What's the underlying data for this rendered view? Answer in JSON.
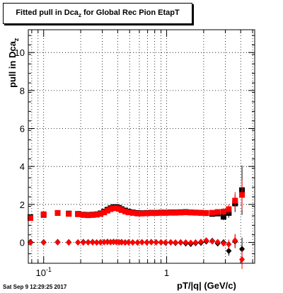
{
  "chart_data": {
    "type": "scatter",
    "title_main": "Fitted pull in Dca",
    "title_sub": "z",
    "title_rest": " for Global Rec Pion EtapT",
    "xlabel": "pT/|q| (GeV/c)",
    "ylabel_main": "pull in Dca",
    "ylabel_sub": "z",
    "x_scale": "log",
    "xlim": [
      0.075,
      5.2
    ],
    "ylim": [
      -1.1,
      11.2
    ],
    "y_ticks": [
      0,
      2,
      4,
      6,
      8,
      10
    ],
    "x_tick_labels": [
      {
        "value": 0.1,
        "base": "10",
        "exp": "-1"
      },
      {
        "value": 1,
        "text": "1"
      }
    ],
    "grid": true,
    "series": [
      {
        "color": "#000000",
        "marker": "square",
        "points": [
          {
            "x": 0.078,
            "y": 1.33,
            "err": 0.06
          },
          {
            "x": 0.1,
            "y": 1.45,
            "err": 0.05
          },
          {
            "x": 0.13,
            "y": 1.55,
            "err": 0.04
          },
          {
            "x": 0.16,
            "y": 1.52,
            "err": 0.04
          },
          {
            "x": 0.19,
            "y": 1.5,
            "err": 0.04
          },
          {
            "x": 0.21,
            "y": 1.46,
            "err": 0.04
          },
          {
            "x": 0.23,
            "y": 1.45,
            "err": 0.04
          },
          {
            "x": 0.25,
            "y": 1.46,
            "err": 0.04
          },
          {
            "x": 0.27,
            "y": 1.48,
            "err": 0.04
          },
          {
            "x": 0.29,
            "y": 1.53,
            "err": 0.04
          },
          {
            "x": 0.31,
            "y": 1.62,
            "err": 0.04
          },
          {
            "x": 0.33,
            "y": 1.72,
            "err": 0.04
          },
          {
            "x": 0.35,
            "y": 1.8,
            "err": 0.04
          },
          {
            "x": 0.37,
            "y": 1.86,
            "err": 0.04
          },
          {
            "x": 0.39,
            "y": 1.86,
            "err": 0.04
          },
          {
            "x": 0.41,
            "y": 1.82,
            "err": 0.04
          },
          {
            "x": 0.43,
            "y": 1.75,
            "err": 0.04
          },
          {
            "x": 0.46,
            "y": 1.68,
            "err": 0.04
          },
          {
            "x": 0.49,
            "y": 1.62,
            "err": 0.04
          },
          {
            "x": 0.53,
            "y": 1.58,
            "err": 0.04
          },
          {
            "x": 0.58,
            "y": 1.55,
            "err": 0.04
          },
          {
            "x": 0.63,
            "y": 1.54,
            "err": 0.04
          },
          {
            "x": 0.69,
            "y": 1.55,
            "err": 0.04
          },
          {
            "x": 0.75,
            "y": 1.56,
            "err": 0.04
          },
          {
            "x": 0.82,
            "y": 1.56,
            "err": 0.04
          },
          {
            "x": 0.9,
            "y": 1.57,
            "err": 0.04
          },
          {
            "x": 0.98,
            "y": 1.57,
            "err": 0.05
          },
          {
            "x": 1.08,
            "y": 1.58,
            "err": 0.05
          },
          {
            "x": 1.18,
            "y": 1.58,
            "err": 0.05
          },
          {
            "x": 1.3,
            "y": 1.59,
            "err": 0.05
          },
          {
            "x": 1.43,
            "y": 1.6,
            "err": 0.06
          },
          {
            "x": 1.57,
            "y": 1.58,
            "err": 0.06
          },
          {
            "x": 1.72,
            "y": 1.57,
            "err": 0.06
          },
          {
            "x": 1.9,
            "y": 1.56,
            "err": 0.07
          },
          {
            "x": 2.1,
            "y": 1.54,
            "err": 0.08
          },
          {
            "x": 2.35,
            "y": 1.5,
            "err": 0.1
          },
          {
            "x": 2.6,
            "y": 1.52,
            "err": 0.12
          },
          {
            "x": 2.9,
            "y": 1.35,
            "err": 0.18
          },
          {
            "x": 3.2,
            "y": 1.55,
            "err": 0.25
          },
          {
            "x": 3.6,
            "y": 2.05,
            "err": 0.45
          },
          {
            "x": 4.1,
            "y": 2.75,
            "err": 1.3
          }
        ]
      },
      {
        "color": "#000000",
        "marker": "diamond",
        "points": [
          {
            "x": 0.078,
            "y": 0.02,
            "err": 0.04
          },
          {
            "x": 0.1,
            "y": 0.01,
            "err": 0.03
          },
          {
            "x": 0.13,
            "y": 0.02,
            "err": 0.03
          },
          {
            "x": 0.16,
            "y": 0.01,
            "err": 0.03
          },
          {
            "x": 0.19,
            "y": 0.0,
            "err": 0.03
          },
          {
            "x": 0.21,
            "y": 0.02,
            "err": 0.03
          },
          {
            "x": 0.23,
            "y": 0.01,
            "err": 0.03
          },
          {
            "x": 0.25,
            "y": 0.02,
            "err": 0.03
          },
          {
            "x": 0.27,
            "y": 0.0,
            "err": 0.03
          },
          {
            "x": 0.29,
            "y": 0.01,
            "err": 0.03
          },
          {
            "x": 0.31,
            "y": 0.02,
            "err": 0.03
          },
          {
            "x": 0.33,
            "y": 0.03,
            "err": 0.03
          },
          {
            "x": 0.35,
            "y": 0.02,
            "err": 0.03
          },
          {
            "x": 0.37,
            "y": 0.03,
            "err": 0.03
          },
          {
            "x": 0.39,
            "y": 0.02,
            "err": 0.03
          },
          {
            "x": 0.41,
            "y": 0.01,
            "err": 0.03
          },
          {
            "x": 0.43,
            "y": 0.02,
            "err": 0.03
          },
          {
            "x": 0.46,
            "y": 0.0,
            "err": 0.03
          },
          {
            "x": 0.49,
            "y": 0.01,
            "err": 0.03
          },
          {
            "x": 0.53,
            "y": 0.0,
            "err": 0.03
          },
          {
            "x": 0.58,
            "y": -0.01,
            "err": 0.03
          },
          {
            "x": 0.63,
            "y": 0.01,
            "err": 0.03
          },
          {
            "x": 0.69,
            "y": 0.0,
            "err": 0.03
          },
          {
            "x": 0.75,
            "y": 0.02,
            "err": 0.03
          },
          {
            "x": 0.82,
            "y": 0.01,
            "err": 0.03
          },
          {
            "x": 0.9,
            "y": 0.0,
            "err": 0.04
          },
          {
            "x": 0.98,
            "y": -0.02,
            "err": 0.04
          },
          {
            "x": 1.08,
            "y": 0.0,
            "err": 0.04
          },
          {
            "x": 1.18,
            "y": -0.03,
            "err": 0.04
          },
          {
            "x": 1.3,
            "y": -0.01,
            "err": 0.05
          },
          {
            "x": 1.43,
            "y": -0.05,
            "err": 0.05
          },
          {
            "x": 1.57,
            "y": -0.08,
            "err": 0.06
          },
          {
            "x": 1.72,
            "y": -0.04,
            "err": 0.06
          },
          {
            "x": 1.9,
            "y": -0.02,
            "err": 0.07
          },
          {
            "x": 2.1,
            "y": 0.05,
            "err": 0.08
          },
          {
            "x": 2.35,
            "y": 0.08,
            "err": 0.1
          },
          {
            "x": 2.6,
            "y": -0.05,
            "err": 0.12
          },
          {
            "x": 2.9,
            "y": 0.0,
            "err": 0.15
          },
          {
            "x": 3.2,
            "y": -0.45,
            "err": 0.25
          },
          {
            "x": 3.6,
            "y": 0.05,
            "err": 0.35
          },
          {
            "x": 4.1,
            "y": -0.35,
            "err": 0.6
          }
        ]
      },
      {
        "color": "#ff0000",
        "marker": "square",
        "points": [
          {
            "x": 0.078,
            "y": 1.28,
            "err": 0.06
          },
          {
            "x": 0.1,
            "y": 1.48,
            "err": 0.05
          },
          {
            "x": 0.13,
            "y": 1.55,
            "err": 0.04
          },
          {
            "x": 0.16,
            "y": 1.5,
            "err": 0.04
          },
          {
            "x": 0.19,
            "y": 1.48,
            "err": 0.04
          },
          {
            "x": 0.21,
            "y": 1.44,
            "err": 0.04
          },
          {
            "x": 0.23,
            "y": 1.43,
            "err": 0.04
          },
          {
            "x": 0.25,
            "y": 1.44,
            "err": 0.04
          },
          {
            "x": 0.27,
            "y": 1.46,
            "err": 0.04
          },
          {
            "x": 0.29,
            "y": 1.5,
            "err": 0.04
          },
          {
            "x": 0.31,
            "y": 1.58,
            "err": 0.04
          },
          {
            "x": 0.33,
            "y": 1.67,
            "err": 0.04
          },
          {
            "x": 0.35,
            "y": 1.75,
            "err": 0.04
          },
          {
            "x": 0.37,
            "y": 1.8,
            "err": 0.04
          },
          {
            "x": 0.39,
            "y": 1.8,
            "err": 0.04
          },
          {
            "x": 0.41,
            "y": 1.76,
            "err": 0.04
          },
          {
            "x": 0.43,
            "y": 1.7,
            "err": 0.04
          },
          {
            "x": 0.46,
            "y": 1.63,
            "err": 0.04
          },
          {
            "x": 0.49,
            "y": 1.58,
            "err": 0.04
          },
          {
            "x": 0.53,
            "y": 1.55,
            "err": 0.04
          },
          {
            "x": 0.58,
            "y": 1.52,
            "err": 0.04
          },
          {
            "x": 0.63,
            "y": 1.52,
            "err": 0.04
          },
          {
            "x": 0.69,
            "y": 1.53,
            "err": 0.04
          },
          {
            "x": 0.75,
            "y": 1.54,
            "err": 0.04
          },
          {
            "x": 0.82,
            "y": 1.54,
            "err": 0.04
          },
          {
            "x": 0.9,
            "y": 1.55,
            "err": 0.04
          },
          {
            "x": 0.98,
            "y": 1.55,
            "err": 0.05
          },
          {
            "x": 1.08,
            "y": 1.56,
            "err": 0.05
          },
          {
            "x": 1.18,
            "y": 1.56,
            "err": 0.05
          },
          {
            "x": 1.3,
            "y": 1.57,
            "err": 0.05
          },
          {
            "x": 1.43,
            "y": 1.58,
            "err": 0.06
          },
          {
            "x": 1.57,
            "y": 1.57,
            "err": 0.06
          },
          {
            "x": 1.72,
            "y": 1.56,
            "err": 0.06
          },
          {
            "x": 1.9,
            "y": 1.55,
            "err": 0.07
          },
          {
            "x": 2.1,
            "y": 1.55,
            "err": 0.08
          },
          {
            "x": 2.35,
            "y": 1.56,
            "err": 0.1
          },
          {
            "x": 2.6,
            "y": 1.6,
            "err": 0.12
          },
          {
            "x": 2.9,
            "y": 1.62,
            "err": 0.18
          },
          {
            "x": 3.2,
            "y": 1.75,
            "err": 0.25
          },
          {
            "x": 3.6,
            "y": 2.2,
            "err": 0.45
          },
          {
            "x": 4.1,
            "y": 2.5,
            "err": 0.8
          }
        ]
      },
      {
        "color": "#ff0000",
        "marker": "diamond",
        "points": [
          {
            "x": 0.078,
            "y": -0.02,
            "err": 0.04
          },
          {
            "x": 0.1,
            "y": -0.01,
            "err": 0.03
          },
          {
            "x": 0.13,
            "y": 0.0,
            "err": 0.03
          },
          {
            "x": 0.16,
            "y": -0.01,
            "err": 0.03
          },
          {
            "x": 0.19,
            "y": 0.0,
            "err": 0.03
          },
          {
            "x": 0.21,
            "y": -0.01,
            "err": 0.03
          },
          {
            "x": 0.23,
            "y": 0.0,
            "err": 0.03
          },
          {
            "x": 0.25,
            "y": 0.0,
            "err": 0.03
          },
          {
            "x": 0.27,
            "y": -0.01,
            "err": 0.03
          },
          {
            "x": 0.29,
            "y": 0.0,
            "err": 0.03
          },
          {
            "x": 0.31,
            "y": 0.01,
            "err": 0.03
          },
          {
            "x": 0.33,
            "y": 0.02,
            "err": 0.03
          },
          {
            "x": 0.35,
            "y": 0.01,
            "err": 0.03
          },
          {
            "x": 0.37,
            "y": 0.02,
            "err": 0.03
          },
          {
            "x": 0.39,
            "y": 0.02,
            "err": 0.03
          },
          {
            "x": 0.41,
            "y": 0.01,
            "err": 0.03
          },
          {
            "x": 0.43,
            "y": 0.0,
            "err": 0.03
          },
          {
            "x": 0.46,
            "y": -0.01,
            "err": 0.03
          },
          {
            "x": 0.49,
            "y": 0.0,
            "err": 0.03
          },
          {
            "x": 0.53,
            "y": -0.01,
            "err": 0.03
          },
          {
            "x": 0.58,
            "y": 0.0,
            "err": 0.03
          },
          {
            "x": 0.63,
            "y": 0.01,
            "err": 0.03
          },
          {
            "x": 0.69,
            "y": 0.0,
            "err": 0.03
          },
          {
            "x": 0.75,
            "y": 0.01,
            "err": 0.03
          },
          {
            "x": 0.82,
            "y": 0.0,
            "err": 0.03
          },
          {
            "x": 0.9,
            "y": 0.01,
            "err": 0.04
          },
          {
            "x": 0.98,
            "y": 0.0,
            "err": 0.04
          },
          {
            "x": 1.08,
            "y": 0.01,
            "err": 0.04
          },
          {
            "x": 1.18,
            "y": 0.0,
            "err": 0.04
          },
          {
            "x": 1.3,
            "y": 0.01,
            "err": 0.05
          },
          {
            "x": 1.43,
            "y": 0.0,
            "err": 0.05
          },
          {
            "x": 1.57,
            "y": -0.02,
            "err": 0.06
          },
          {
            "x": 1.72,
            "y": 0.0,
            "err": 0.06
          },
          {
            "x": 1.9,
            "y": 0.03,
            "err": 0.07
          },
          {
            "x": 2.1,
            "y": 0.1,
            "err": 0.08
          },
          {
            "x": 2.35,
            "y": 0.05,
            "err": 0.1
          },
          {
            "x": 2.6,
            "y": 0.02,
            "err": 0.12
          },
          {
            "x": 2.9,
            "y": -0.05,
            "err": 0.15
          },
          {
            "x": 3.2,
            "y": -0.1,
            "err": 0.25
          },
          {
            "x": 3.6,
            "y": 0.1,
            "err": 0.35
          },
          {
            "x": 4.1,
            "y": -0.9,
            "err": 0.5
          }
        ]
      }
    ]
  },
  "footer": {
    "timestamp": "Sat Sep  9 12:29:25 2017"
  }
}
